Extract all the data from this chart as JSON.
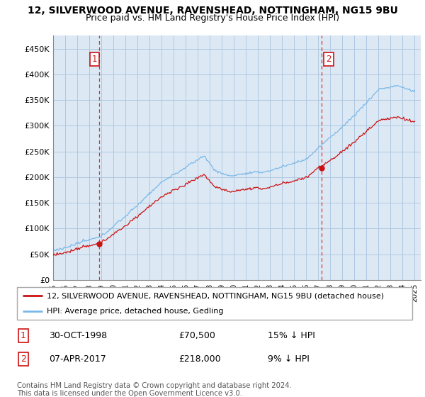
{
  "title_line1": "12, SILVERWOOD AVENUE, RAVENSHEAD, NOTTINGHAM, NG15 9BU",
  "title_line2": "Price paid vs. HM Land Registry's House Price Index (HPI)",
  "ylabel_ticks": [
    "£0",
    "£50K",
    "£100K",
    "£150K",
    "£200K",
    "£250K",
    "£300K",
    "£350K",
    "£400K",
    "£450K"
  ],
  "ytick_values": [
    0,
    50000,
    100000,
    150000,
    200000,
    250000,
    300000,
    350000,
    400000,
    450000
  ],
  "xlim": [
    1995.0,
    2025.5
  ],
  "ylim": [
    0,
    475000
  ],
  "hpi_color": "#7ab8e8",
  "price_color": "#cc1111",
  "vline_color": "#dd3333",
  "background_color": "#dce9f5",
  "grid_color": "#b0c8e0",
  "outer_background": "#ffffff",
  "legend_label_red": "12, SILVERWOOD AVENUE, RAVENSHEAD, NOTTINGHAM, NG15 9BU (detached house)",
  "legend_label_blue": "HPI: Average price, detached house, Gedling",
  "sale1_x": 1998.83,
  "sale1_y": 70500,
  "sale1_label": "1",
  "sale2_x": 2017.27,
  "sale2_y": 218000,
  "sale2_label": "2",
  "table_rows": [
    {
      "num": "1",
      "date": "30-OCT-1998",
      "price": "£70,500",
      "hpi": "15% ↓ HPI"
    },
    {
      "num": "2",
      "date": "07-APR-2017",
      "price": "£218,000",
      "hpi": "9% ↓ HPI"
    }
  ],
  "footer": "Contains HM Land Registry data © Crown copyright and database right 2024.\nThis data is licensed under the Open Government Licence v3.0.",
  "title_fontsize": 10,
  "subtitle_fontsize": 9,
  "tick_fontsize": 8,
  "legend_fontsize": 8.5,
  "table_fontsize": 9
}
